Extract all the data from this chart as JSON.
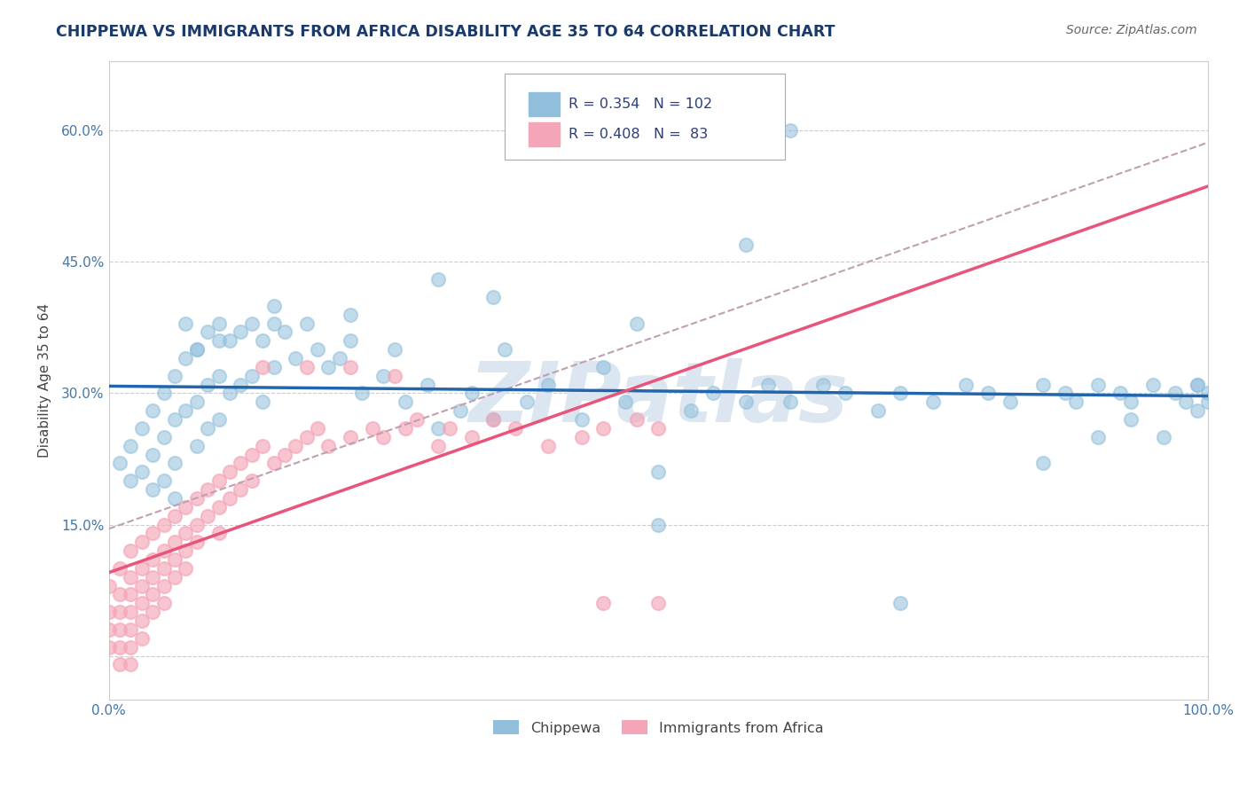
{
  "title": "CHIPPEWA VS IMMIGRANTS FROM AFRICA DISABILITY AGE 35 TO 64 CORRELATION CHART",
  "source": "Source: ZipAtlas.com",
  "ylabel": "Disability Age 35 to 64",
  "xlim": [
    0.0,
    1.0
  ],
  "ylim": [
    -0.05,
    0.68
  ],
  "yticks": [
    0.0,
    0.15,
    0.3,
    0.45,
    0.6
  ],
  "yticklabels": [
    "",
    "15.0%",
    "30.0%",
    "45.0%",
    "60.0%"
  ],
  "blue_color": "#91bfdb",
  "pink_color": "#f4a6b8",
  "line_blue": "#2166ac",
  "line_pink": "#e8547a",
  "line_dashed_color": "#c0a0b0",
  "watermark": "ZIPatlas",
  "watermark_color": "#dce6f0",
  "title_color": "#1a3a6b",
  "source_color": "#666666",
  "background_color": "#ffffff",
  "grid_color": "#cccccc",
  "tick_label_color": "#4477aa",
  "chippewa_x": [
    0.01,
    0.02,
    0.02,
    0.03,
    0.03,
    0.04,
    0.04,
    0.04,
    0.05,
    0.05,
    0.05,
    0.06,
    0.06,
    0.06,
    0.06,
    0.07,
    0.07,
    0.08,
    0.08,
    0.08,
    0.09,
    0.09,
    0.09,
    0.1,
    0.1,
    0.1,
    0.11,
    0.11,
    0.12,
    0.12,
    0.13,
    0.13,
    0.14,
    0.14,
    0.15,
    0.15,
    0.16,
    0.17,
    0.18,
    0.19,
    0.2,
    0.21,
    0.22,
    0.23,
    0.25,
    0.26,
    0.27,
    0.29,
    0.3,
    0.32,
    0.33,
    0.35,
    0.36,
    0.38,
    0.4,
    0.43,
    0.45,
    0.47,
    0.5,
    0.53,
    0.55,
    0.58,
    0.6,
    0.62,
    0.65,
    0.67,
    0.7,
    0.72,
    0.75,
    0.78,
    0.8,
    0.82,
    0.85,
    0.87,
    0.88,
    0.9,
    0.92,
    0.93,
    0.95,
    0.97,
    0.98,
    0.99,
    1.0,
    1.0,
    0.62,
    0.58,
    0.48,
    0.35,
    0.3,
    0.22,
    0.15,
    0.1,
    0.08,
    0.07,
    0.72,
    0.85,
    0.9,
    0.93,
    0.96,
    0.99,
    0.99,
    0.5
  ],
  "chippewa_y": [
    0.22,
    0.24,
    0.2,
    0.26,
    0.21,
    0.28,
    0.23,
    0.19,
    0.3,
    0.25,
    0.2,
    0.32,
    0.27,
    0.22,
    0.18,
    0.34,
    0.28,
    0.35,
    0.29,
    0.24,
    0.37,
    0.31,
    0.26,
    0.38,
    0.32,
    0.27,
    0.36,
    0.3,
    0.37,
    0.31,
    0.38,
    0.32,
    0.36,
    0.29,
    0.4,
    0.33,
    0.37,
    0.34,
    0.38,
    0.35,
    0.33,
    0.34,
    0.36,
    0.3,
    0.32,
    0.35,
    0.29,
    0.31,
    0.26,
    0.28,
    0.3,
    0.27,
    0.35,
    0.29,
    0.31,
    0.27,
    0.33,
    0.29,
    0.21,
    0.28,
    0.3,
    0.29,
    0.31,
    0.29,
    0.31,
    0.3,
    0.28,
    0.3,
    0.29,
    0.31,
    0.3,
    0.29,
    0.31,
    0.3,
    0.29,
    0.31,
    0.3,
    0.29,
    0.31,
    0.3,
    0.29,
    0.31,
    0.3,
    0.29,
    0.6,
    0.47,
    0.38,
    0.41,
    0.43,
    0.39,
    0.38,
    0.36,
    0.35,
    0.38,
    0.06,
    0.22,
    0.25,
    0.27,
    0.25,
    0.28,
    0.31,
    0.15
  ],
  "africa_x": [
    0.0,
    0.0,
    0.0,
    0.0,
    0.01,
    0.01,
    0.01,
    0.01,
    0.01,
    0.01,
    0.02,
    0.02,
    0.02,
    0.02,
    0.02,
    0.02,
    0.02,
    0.03,
    0.03,
    0.03,
    0.03,
    0.03,
    0.03,
    0.04,
    0.04,
    0.04,
    0.04,
    0.04,
    0.05,
    0.05,
    0.05,
    0.05,
    0.05,
    0.06,
    0.06,
    0.06,
    0.06,
    0.07,
    0.07,
    0.07,
    0.07,
    0.08,
    0.08,
    0.08,
    0.09,
    0.09,
    0.1,
    0.1,
    0.1,
    0.11,
    0.11,
    0.12,
    0.12,
    0.13,
    0.13,
    0.14,
    0.15,
    0.16,
    0.17,
    0.18,
    0.19,
    0.2,
    0.22,
    0.24,
    0.25,
    0.27,
    0.28,
    0.3,
    0.31,
    0.33,
    0.35,
    0.37,
    0.4,
    0.43,
    0.45,
    0.48,
    0.5,
    0.14,
    0.18,
    0.22,
    0.26,
    0.45,
    0.5
  ],
  "africa_y": [
    0.08,
    0.05,
    0.03,
    0.01,
    0.1,
    0.07,
    0.05,
    0.03,
    0.01,
    -0.01,
    0.12,
    0.09,
    0.07,
    0.05,
    0.03,
    0.01,
    -0.01,
    0.13,
    0.1,
    0.08,
    0.06,
    0.04,
    0.02,
    0.14,
    0.11,
    0.09,
    0.07,
    0.05,
    0.15,
    0.12,
    0.1,
    0.08,
    0.06,
    0.16,
    0.13,
    0.11,
    0.09,
    0.17,
    0.14,
    0.12,
    0.1,
    0.18,
    0.15,
    0.13,
    0.19,
    0.16,
    0.2,
    0.17,
    0.14,
    0.21,
    0.18,
    0.22,
    0.19,
    0.23,
    0.2,
    0.24,
    0.22,
    0.23,
    0.24,
    0.25,
    0.26,
    0.24,
    0.25,
    0.26,
    0.25,
    0.26,
    0.27,
    0.24,
    0.26,
    0.25,
    0.27,
    0.26,
    0.24,
    0.25,
    0.26,
    0.27,
    0.26,
    0.33,
    0.33,
    0.33,
    0.32,
    0.06,
    0.06
  ]
}
